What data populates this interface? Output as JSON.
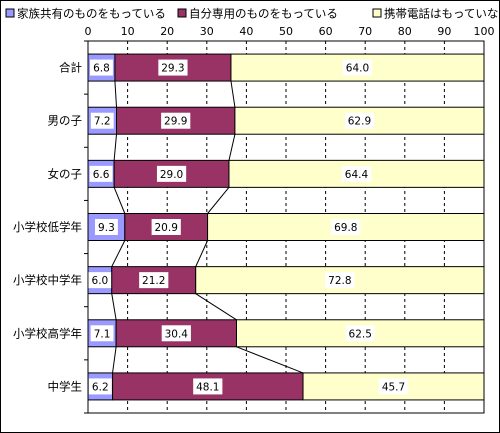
{
  "chart_data": {
    "type": "bar",
    "orientation": "horizontal",
    "stacked": true,
    "title": "",
    "xlabel": "",
    "ylabel": "",
    "xlim": [
      0,
      100
    ],
    "x_ticks": [
      0,
      10,
      20,
      30,
      40,
      50,
      60,
      70,
      80,
      90,
      100
    ],
    "x_tick_labels": [
      "0",
      "10",
      "20",
      "30",
      "40",
      "50",
      "60",
      "70",
      "80",
      "90",
      "100"
    ],
    "grid": true,
    "legend_position": "top",
    "series_connector_lines": true,
    "categories": [
      "合計",
      "男の子",
      "女の子",
      "小学校低学年",
      "小学校中学年",
      "小学校高学年",
      "中学生"
    ],
    "series": [
      {
        "name": "家族共有のものをもっている",
        "color": "#9999FF",
        "values": [
          6.8,
          7.2,
          6.6,
          9.3,
          6.0,
          7.1,
          6.2
        ]
      },
      {
        "name": "自分専用のものをもっている",
        "color": "#993366",
        "values": [
          29.3,
          29.9,
          29.0,
          20.9,
          21.2,
          30.4,
          48.1
        ]
      },
      {
        "name": "携帯電話はもっていない",
        "color": "#FFFFCC",
        "values": [
          64.0,
          62.9,
          64.4,
          69.8,
          72.8,
          62.5,
          45.7
        ]
      }
    ]
  }
}
